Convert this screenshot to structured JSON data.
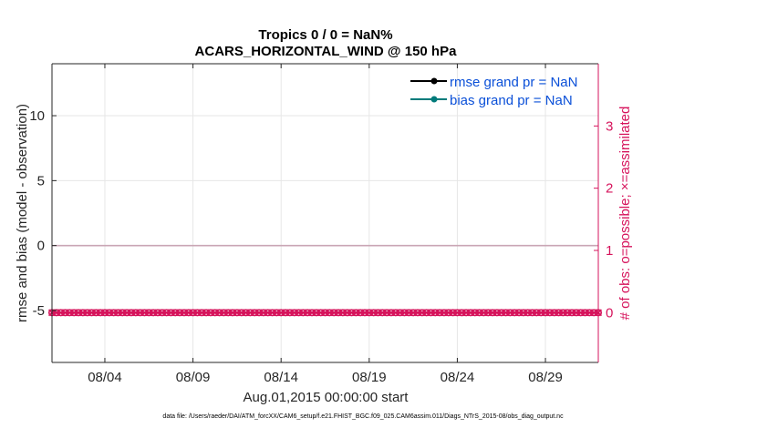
{
  "chart_data": {
    "type": "line",
    "title_line1": "Tropics 0 / 0 = NaN%",
    "title_line2": "ACARS_HORIZONTAL_WIND @ 150 hPa",
    "xlabel": "Aug.01,2015 00:00:00 start",
    "ylabel_left": "rmse and bias (model - observation)",
    "ylabel_right": "# of obs: o=possible; ×=assimilated",
    "x_range_days": [
      1.0,
      32.0
    ],
    "ylim_left": [
      -9,
      14
    ],
    "ylim_right": [
      -0.8,
      4.0
    ],
    "x_ticks": [
      {
        "day": 4,
        "label": "08/04"
      },
      {
        "day": 9,
        "label": "08/09"
      },
      {
        "day": 14,
        "label": "08/14"
      },
      {
        "day": 19,
        "label": "08/19"
      },
      {
        "day": 24,
        "label": "08/24"
      },
      {
        "day": 29,
        "label": "08/29"
      }
    ],
    "y_ticks_left": [
      {
        "value": -5,
        "label": "-5"
      },
      {
        "value": 0,
        "label": "0"
      },
      {
        "value": 5,
        "label": "5"
      },
      {
        "value": 10,
        "label": "10"
      }
    ],
    "y_ticks_right": [
      {
        "value": 0,
        "label": "0"
      },
      {
        "value": 1,
        "label": "1"
      },
      {
        "value": 2,
        "label": "2"
      },
      {
        "value": 3,
        "label": "3"
      }
    ],
    "legend": [
      {
        "name": "rmse grand pr = NaN",
        "color": "#000000"
      },
      {
        "name": "bias grand pr = NaN",
        "color": "#007b7b"
      }
    ],
    "zero_line_value": 0,
    "obs_possible": {
      "axis": "right",
      "value": 0,
      "color": "#d6145c",
      "x_start_day": 1.0,
      "x_end_day": 32.0,
      "count": 125
    },
    "obs_assimilated": {
      "axis": "right",
      "value": 0,
      "color": "#d6145c",
      "x_start_day": 1.0,
      "x_end_day": 32.0,
      "count": 125
    }
  },
  "footnote": "data file: /Users/raeder/DAI/ATM_forcXX/CAM6_setup/f.e21.FHIST_BGC.f09_025.CAM6assim.011/Diags_NTrS_2015-08/obs_diag_output.nc",
  "colors": {
    "right_axis": "#d6145c",
    "grid": "#e6e6e6",
    "legend_text": "#0b50d8"
  }
}
